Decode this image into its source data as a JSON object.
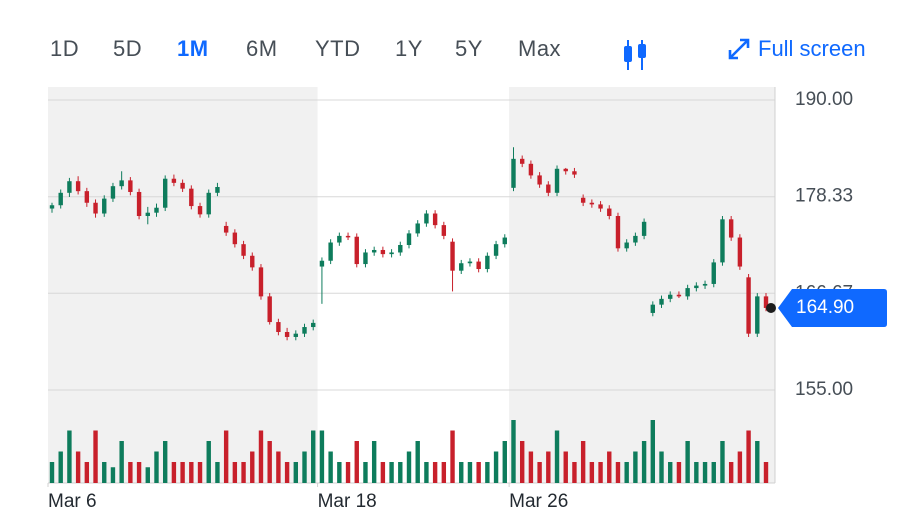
{
  "range_buttons": [
    "1D",
    "5D",
    "1M",
    "6M",
    "YTD",
    "1Y",
    "5Y",
    "Max"
  ],
  "selected_range": "1M",
  "full_screen": "Full screen",
  "chart_data": {
    "type": "candlestick",
    "up_color": "#0e7c5c",
    "down_color": "#c8202b",
    "ylim": [
      153.19,
      191.57
    ],
    "yticks": [
      {
        "value": 155,
        "label": "155.00"
      },
      {
        "value": 166.67,
        "label": "166.67"
      },
      {
        "value": 178.33,
        "label": "178.33"
      },
      {
        "value": 190,
        "label": "190.00"
      }
    ],
    "grid": true,
    "xticks": [
      {
        "value": 0,
        "label": "Mar 6"
      },
      {
        "value": 31,
        "label": "Mar 18"
      },
      {
        "value": 53,
        "label": "Mar 26"
      }
    ],
    "last_price": {
      "value": 164.9,
      "label": "164.90"
    },
    "open": [
      176.9,
      177.3,
      178.8,
      180.2,
      179.0,
      177.6,
      176.3,
      178.1,
      179.6,
      180.3,
      178.9,
      176.0,
      176.4,
      177.0,
      180.5,
      180.0,
      179.3,
      177.2,
      176.2,
      178.8,
      174.8,
      174.0,
      172.6,
      171.2,
      169.8,
      166.3,
      163.2,
      162.0,
      161.4,
      161.8,
      162.6,
      169.9,
      170.6,
      172.8,
      173.6,
      173.5,
      170.2,
      171.6,
      171.9,
      171.4,
      171.6,
      172.5,
      173.9,
      175.1,
      176.3,
      174.9,
      172.9,
      169.4,
      170.3,
      170.5,
      169.6,
      171.2,
      172.6,
      179.4,
      182.9,
      182.3,
      180.9,
      179.8,
      178.8,
      181.7,
      181.4,
      178.2,
      177.6,
      177.4,
      176.9,
      176.0,
      172.1,
      172.8,
      173.6,
      164.3,
      165.3,
      166.0,
      166.5,
      166.3,
      167.3,
      167.6,
      167.8,
      170.4,
      175.6,
      173.4,
      168.6,
      161.8,
      166.3
    ],
    "high": [
      177.6,
      179.2,
      180.6,
      180.8,
      179.4,
      178.0,
      178.5,
      180.0,
      181.4,
      180.7,
      179.3,
      177.1,
      177.5,
      180.9,
      181.0,
      180.4,
      179.7,
      177.6,
      179.2,
      180.0,
      175.3,
      174.4,
      173.0,
      171.6,
      170.2,
      166.7,
      163.6,
      162.5,
      162.2,
      163.0,
      163.5,
      171.0,
      173.2,
      174.0,
      174.0,
      173.9,
      172.0,
      172.3,
      172.3,
      172.0,
      172.9,
      174.3,
      175.5,
      176.7,
      176.7,
      175.3,
      173.3,
      170.7,
      170.9,
      170.9,
      171.6,
      173.0,
      173.8,
      184.3,
      183.3,
      182.7,
      181.3,
      180.2,
      182.1,
      181.8,
      181.8,
      178.6,
      178.0,
      177.8,
      177.3,
      176.4,
      173.2,
      174.0,
      175.7,
      165.7,
      166.4,
      166.9,
      166.9,
      167.7,
      168.0,
      168.2,
      170.8,
      176.0,
      176.0,
      173.8,
      169.0,
      166.7,
      166.7
    ],
    "low": [
      176.4,
      176.9,
      178.3,
      178.6,
      177.1,
      175.8,
      175.9,
      177.7,
      179.2,
      178.5,
      175.6,
      175.0,
      175.9,
      176.6,
      179.6,
      178.9,
      176.8,
      175.8,
      175.8,
      178.4,
      173.6,
      172.2,
      170.8,
      169.4,
      165.9,
      162.9,
      161.6,
      161.0,
      161.0,
      161.4,
      162.2,
      165.4,
      170.2,
      172.4,
      173.1,
      169.8,
      169.8,
      171.2,
      171.0,
      171.0,
      171.2,
      172.1,
      173.5,
      174.7,
      174.5,
      173.2,
      166.9,
      169.0,
      169.9,
      169.2,
      169.2,
      170.8,
      172.2,
      179.0,
      181.9,
      180.5,
      179.4,
      178.4,
      178.4,
      181.0,
      180.6,
      177.2,
      177.0,
      176.5,
      175.6,
      171.7,
      171.7,
      172.4,
      173.2,
      163.9,
      164.9,
      165.6,
      166.1,
      165.9,
      166.9,
      167.2,
      167.4,
      170.0,
      173.0,
      169.5,
      161.4,
      161.4,
      164.5
    ],
    "close": [
      177.3,
      178.8,
      180.2,
      179.0,
      177.6,
      176.3,
      178.1,
      179.6,
      180.3,
      178.9,
      176.0,
      176.4,
      177.0,
      180.5,
      180.0,
      179.3,
      177.2,
      176.2,
      178.8,
      179.5,
      174.0,
      172.6,
      171.2,
      169.8,
      166.3,
      163.2,
      162.0,
      161.4,
      161.8,
      162.6,
      163.1,
      170.6,
      172.8,
      173.6,
      173.5,
      170.2,
      171.6,
      171.9,
      171.4,
      171.6,
      172.5,
      173.9,
      175.1,
      176.3,
      174.9,
      173.6,
      169.4,
      170.3,
      170.5,
      169.6,
      171.2,
      172.6,
      173.4,
      182.9,
      182.3,
      180.9,
      179.8,
      178.8,
      181.7,
      181.4,
      181.0,
      177.6,
      177.4,
      176.9,
      176.0,
      172.1,
      172.8,
      173.6,
      175.3,
      165.3,
      166.0,
      166.5,
      166.3,
      167.3,
      167.6,
      167.8,
      170.4,
      175.6,
      173.4,
      169.9,
      161.8,
      166.3,
      164.9
    ],
    "volume": [
      2,
      3,
      5,
      3,
      2,
      5,
      2,
      1.5,
      4,
      2,
      2,
      1.5,
      3,
      4,
      2,
      2,
      2,
      2,
      4,
      2,
      5,
      2,
      2,
      3,
      5,
      4,
      3,
      2,
      2,
      3,
      5,
      5,
      3,
      2,
      2,
      4,
      2,
      4,
      2,
      2,
      2,
      3,
      4,
      2,
      2,
      2,
      5,
      2,
      2,
      2,
      2,
      3,
      4,
      6,
      4,
      3,
      2,
      3,
      5,
      3,
      2,
      4,
      2,
      2,
      3,
      2,
      2,
      3,
      4,
      6,
      3,
      2,
      2,
      4,
      2,
      2,
      2,
      4,
      2,
      3,
      5,
      4,
      2
    ]
  }
}
